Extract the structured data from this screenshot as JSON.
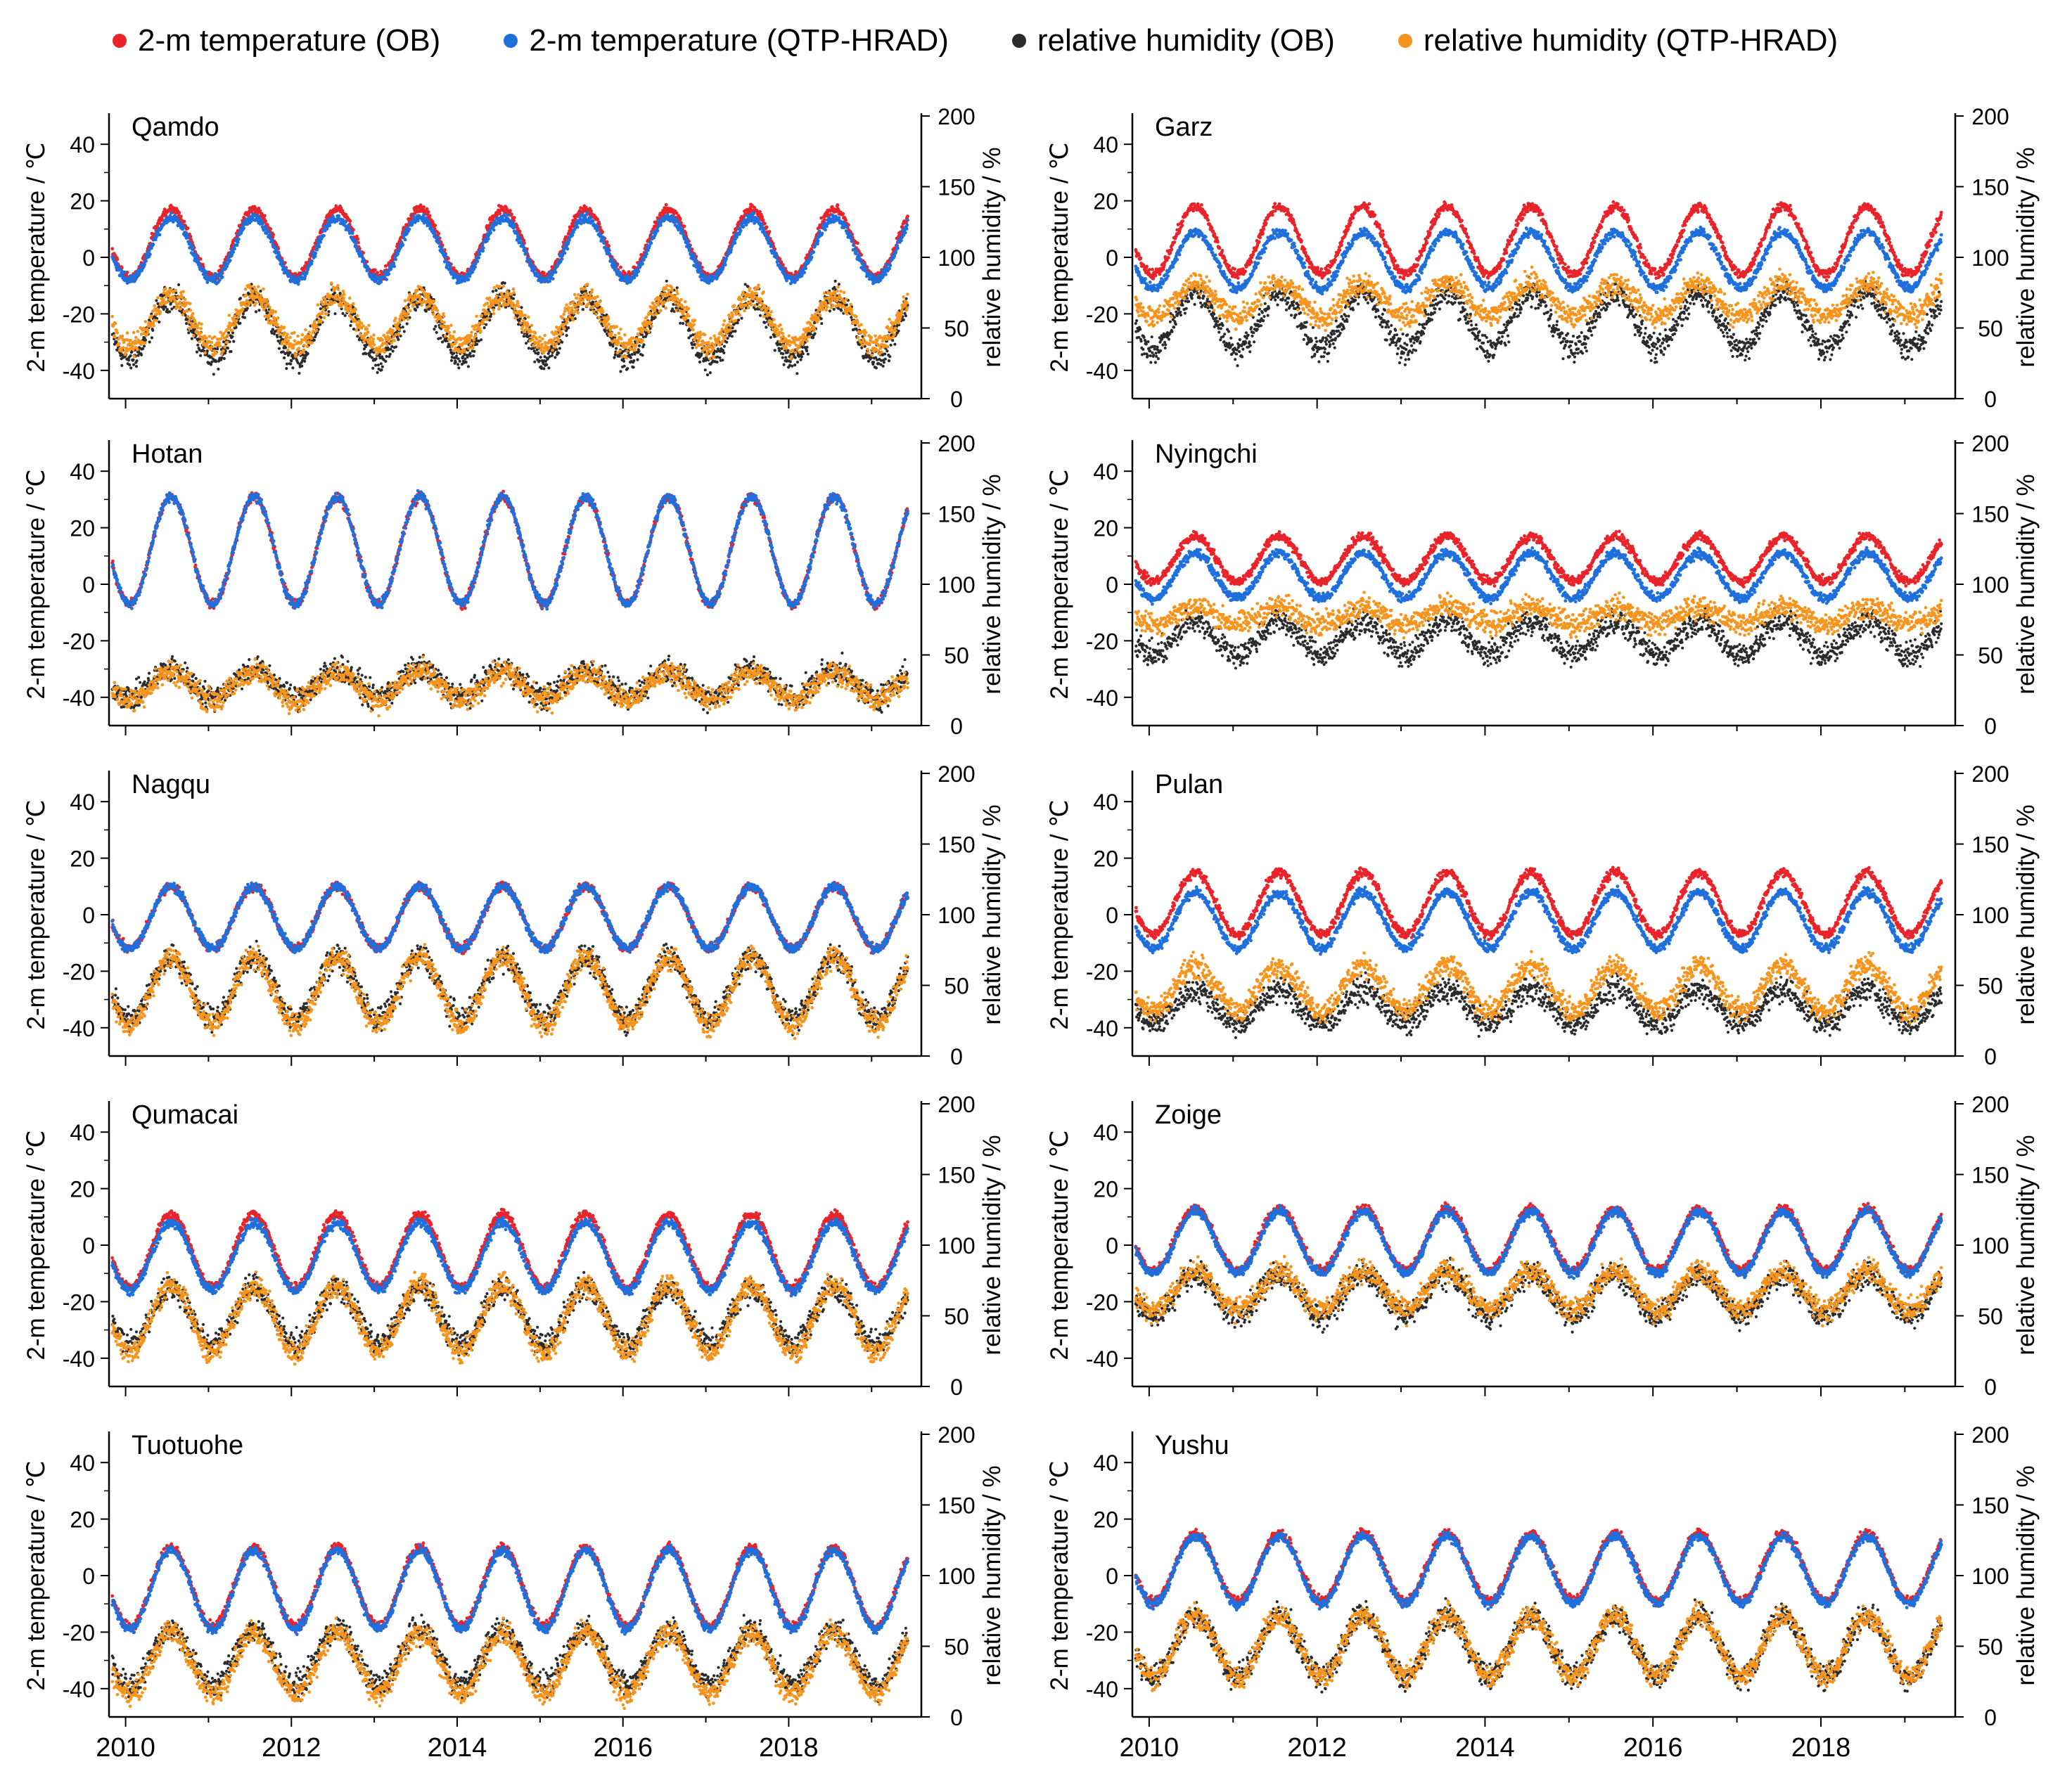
{
  "legend": [
    {
      "label": "2-m temperature (OB)",
      "color": "#e8242a"
    },
    {
      "label": "2-m temperature (QTP-HRAD)",
      "color": "#1f6fdc"
    },
    {
      "label": "relative humidity (OB)",
      "color": "#2b2b2b"
    },
    {
      "label": "relative humidity (QTP-HRAD)",
      "color": "#f7941d"
    }
  ],
  "chart_data": [
    {
      "type": "scatter",
      "station": "Qamdo",
      "x_range": [
        2009.8,
        2019.6
      ],
      "temp_ylim": [
        -50,
        50
      ],
      "rh_ylim": [
        0,
        200
      ],
      "temp_ob": {
        "mean": 5,
        "amp": 12
      },
      "temp_hrad": {
        "mean": 3,
        "amp": 11
      },
      "rh_ob": {
        "mean": 50,
        "amp": 22
      },
      "rh_hrad": {
        "mean": 55,
        "amp": 18
      }
    },
    {
      "type": "scatter",
      "station": "Garz",
      "x_range": [
        2009.8,
        2019.6
      ],
      "temp_ylim": [
        -50,
        50
      ],
      "rh_ylim": [
        0,
        200
      ],
      "temp_ob": {
        "mean": 6,
        "amp": 12
      },
      "temp_hrad": {
        "mean": -1,
        "amp": 10
      },
      "rh_ob": {
        "mean": 55,
        "amp": 20
      },
      "rh_hrad": {
        "mean": 70,
        "amp": 12
      }
    },
    {
      "type": "scatter",
      "station": "Hotan",
      "x_range": [
        2009.8,
        2019.6
      ],
      "temp_ylim": [
        -50,
        50
      ],
      "rh_ylim": [
        0,
        200
      ],
      "temp_ob": {
        "mean": 12,
        "amp": 19
      },
      "temp_hrad": {
        "mean": 12,
        "amp": 19
      },
      "rh_ob": {
        "mean": 30,
        "amp": 10
      },
      "rh_hrad": {
        "mean": 28,
        "amp": 10
      }
    },
    {
      "type": "scatter",
      "station": "Nyingchi",
      "x_range": [
        2009.8,
        2019.6
      ],
      "temp_ylim": [
        -50,
        50
      ],
      "rh_ylim": [
        0,
        200
      ],
      "temp_ob": {
        "mean": 9,
        "amp": 8
      },
      "temp_hrad": {
        "mean": 3,
        "amp": 8
      },
      "rh_ob": {
        "mean": 62,
        "amp": 12
      },
      "rh_hrad": {
        "mean": 78,
        "amp": 6
      }
    },
    {
      "type": "scatter",
      "station": "Nagqu",
      "x_range": [
        2009.8,
        2019.6
      ],
      "temp_ylim": [
        -50,
        50
      ],
      "rh_ylim": [
        0,
        200
      ],
      "temp_ob": {
        "mean": -1,
        "amp": 11
      },
      "temp_hrad": {
        "mean": -1,
        "amp": 11
      },
      "rh_ob": {
        "mean": 48,
        "amp": 22
      },
      "rh_hrad": {
        "mean": 46,
        "amp": 24
      }
    },
    {
      "type": "scatter",
      "station": "Pulan",
      "x_range": [
        2009.8,
        2019.6
      ],
      "temp_ylim": [
        -50,
        50
      ],
      "rh_ylim": [
        0,
        200
      ],
      "temp_ob": {
        "mean": 4,
        "amp": 11
      },
      "temp_hrad": {
        "mean": -2,
        "amp": 10
      },
      "rh_ob": {
        "mean": 35,
        "amp": 12
      },
      "rh_hrad": {
        "mean": 48,
        "amp": 16
      }
    },
    {
      "type": "scatter",
      "station": "Qumacai",
      "x_range": [
        2009.8,
        2019.6
      ],
      "temp_ylim": [
        -50,
        50
      ],
      "rh_ylim": [
        0,
        200
      ],
      "temp_ob": {
        "mean": -2,
        "amp": 13
      },
      "temp_hrad": {
        "mean": -4,
        "amp": 12
      },
      "rh_ob": {
        "mean": 50,
        "amp": 20
      },
      "rh_hrad": {
        "mean": 48,
        "amp": 24
      }
    },
    {
      "type": "scatter",
      "station": "Zoige",
      "x_range": [
        2009.8,
        2019.6
      ],
      "temp_ylim": [
        -50,
        50
      ],
      "rh_ylim": [
        0,
        200
      ],
      "temp_ob": {
        "mean": 2,
        "amp": 11
      },
      "temp_hrad": {
        "mean": 1,
        "amp": 11
      },
      "rh_ob": {
        "mean": 65,
        "amp": 15
      },
      "rh_hrad": {
        "mean": 68,
        "amp": 14
      }
    },
    {
      "type": "scatter",
      "station": "Tuotuohe",
      "x_range": [
        2009.8,
        2019.6
      ],
      "temp_ylim": [
        -50,
        50
      ],
      "rh_ylim": [
        0,
        200
      ],
      "temp_ob": {
        "mean": -4,
        "amp": 14
      },
      "temp_hrad": {
        "mean": -5,
        "amp": 14
      },
      "rh_ob": {
        "mean": 42,
        "amp": 20
      },
      "rh_hrad": {
        "mean": 38,
        "amp": 22
      }
    },
    {
      "type": "scatter",
      "station": "Yushu",
      "x_range": [
        2009.8,
        2019.6
      ],
      "temp_ylim": [
        -50,
        50
      ],
      "rh_ylim": [
        0,
        200
      ],
      "temp_ob": {
        "mean": 3,
        "amp": 12
      },
      "temp_hrad": {
        "mean": 2,
        "amp": 12
      },
      "rh_ob": {
        "mean": 50,
        "amp": 22
      },
      "rh_hrad": {
        "mean": 50,
        "amp": 22
      }
    }
  ],
  "axes": {
    "temp_ticks": [
      "40",
      "20",
      "0",
      "-20",
      "-40"
    ],
    "temp_values": [
      40,
      20,
      0,
      -20,
      -40
    ],
    "rh_ticks": [
      "200",
      "150",
      "100",
      "50",
      "0"
    ],
    "rh_values": [
      200,
      150,
      100,
      50,
      0
    ],
    "x_ticks": [
      "2010",
      "2012",
      "2014",
      "2016",
      "2018"
    ],
    "x_values": [
      2010,
      2012,
      2014,
      2016,
      2018
    ],
    "left_label": "2-m temperature / ℃",
    "right_label": "relative humidity / %"
  }
}
